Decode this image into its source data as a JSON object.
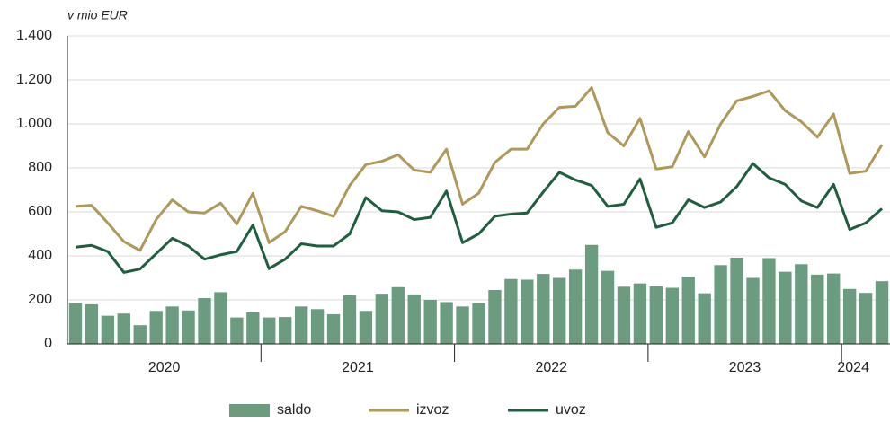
{
  "chart_data": {
    "type": "bar-line",
    "y_axis_label": "v mio EUR",
    "categories": [
      null,
      null,
      null,
      null,
      null,
      null,
      null,
      null,
      null,
      null,
      null,
      null,
      null,
      null,
      null,
      null,
      null,
      null,
      null,
      null,
      null,
      null,
      null,
      null,
      null,
      null,
      null,
      null,
      null,
      null,
      null,
      null,
      null,
      null,
      null,
      null,
      null,
      null,
      null,
      null,
      null,
      null,
      null,
      null,
      null,
      null,
      null,
      null,
      null,
      null,
      null
    ],
    "year_labels": [
      "2020",
      "2021",
      "2022",
      "2023",
      "2024"
    ],
    "ylim": [
      0,
      1400
    ],
    "yticks": [
      0,
      200,
      400,
      600,
      800,
      {
        "value": 1000,
        "label": "1.000"
      },
      {
        "value": 1200,
        "label": "1.200"
      },
      {
        "value": 1400,
        "label": "1.400"
      }
    ],
    "grid": true,
    "legend": "bottom",
    "series": [
      {
        "name": "saldo",
        "kind": "bar",
        "color": "#6b9c80",
        "values": [
          185,
          180,
          128,
          138,
          85,
          150,
          170,
          152,
          208,
          235,
          120,
          143,
          120,
          122,
          170,
          158,
          135,
          222,
          150,
          228,
          258,
          225,
          200,
          190,
          170,
          185,
          245,
          295,
          292,
          318,
          300,
          338,
          450,
          332,
          260,
          275,
          262,
          255,
          305,
          230,
          358,
          392,
          300,
          390,
          328,
          362,
          315,
          320,
          250,
          232,
          285
        ]
      },
      {
        "name": "izvoz",
        "kind": "line",
        "color": "#b0985a",
        "values": [
          625,
          630,
          550,
          465,
          425,
          565,
          655,
          600,
          595,
          640,
          545,
          685,
          460,
          510,
          625,
          605,
          580,
          720,
          815,
          830,
          860,
          790,
          780,
          885,
          635,
          685,
          825,
          885,
          885,
          1000,
          1075,
          1080,
          1165,
          960,
          900,
          1025,
          795,
          805,
          965,
          850,
          1000,
          1105,
          1125,
          1150,
          1060,
          1010,
          940,
          1045,
          775,
          785,
          905
        ]
      },
      {
        "name": "uvoz",
        "kind": "line",
        "color": "#1f5e3f",
        "values": [
          440,
          448,
          420,
          325,
          340,
          410,
          480,
          445,
          385,
          405,
          420,
          540,
          342,
          385,
          455,
          445,
          445,
          500,
          665,
          605,
          600,
          565,
          575,
          695,
          460,
          500,
          580,
          590,
          595,
          690,
          780,
          745,
          720,
          625,
          635,
          750,
          530,
          550,
          655,
          620,
          645,
          715,
          820,
          755,
          725,
          650,
          620,
          725,
          520,
          550,
          615
        ]
      }
    ]
  }
}
